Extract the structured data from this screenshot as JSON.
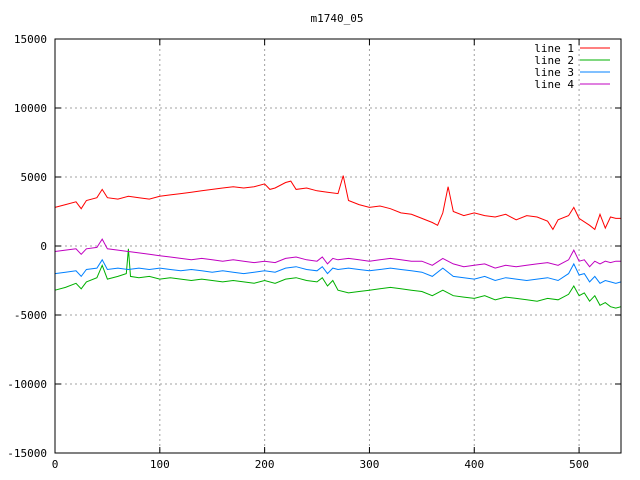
{
  "chart_data": {
    "type": "line",
    "title": "m1740_05",
    "xlim": [
      0,
      540
    ],
    "ylim": [
      -15000,
      15000
    ],
    "xticks": [
      0,
      100,
      200,
      300,
      400,
      500
    ],
    "yticks": [
      -15000,
      -10000,
      -5000,
      0,
      5000,
      10000,
      15000
    ],
    "grid": true,
    "legend_position": "top-right",
    "series": [
      {
        "name": "line 1",
        "color": "#ff0000",
        "points": [
          [
            0,
            2800
          ],
          [
            10,
            3000
          ],
          [
            20,
            3200
          ],
          [
            25,
            2700
          ],
          [
            30,
            3300
          ],
          [
            40,
            3500
          ],
          [
            45,
            4100
          ],
          [
            50,
            3500
          ],
          [
            60,
            3400
          ],
          [
            70,
            3600
          ],
          [
            80,
            3500
          ],
          [
            90,
            3400
          ],
          [
            100,
            3600
          ],
          [
            110,
            3700
          ],
          [
            120,
            3800
          ],
          [
            130,
            3900
          ],
          [
            140,
            4000
          ],
          [
            150,
            4100
          ],
          [
            160,
            4200
          ],
          [
            170,
            4300
          ],
          [
            180,
            4200
          ],
          [
            190,
            4300
          ],
          [
            200,
            4500
          ],
          [
            205,
            4100
          ],
          [
            210,
            4200
          ],
          [
            220,
            4600
          ],
          [
            225,
            4700
          ],
          [
            230,
            4100
          ],
          [
            240,
            4200
          ],
          [
            250,
            4000
          ],
          [
            260,
            3900
          ],
          [
            270,
            3800
          ],
          [
            275,
            5100
          ],
          [
            280,
            3300
          ],
          [
            290,
            3000
          ],
          [
            300,
            2800
          ],
          [
            310,
            2900
          ],
          [
            320,
            2700
          ],
          [
            330,
            2400
          ],
          [
            340,
            2300
          ],
          [
            350,
            2000
          ],
          [
            360,
            1700
          ],
          [
            365,
            1500
          ],
          [
            370,
            2400
          ],
          [
            375,
            4300
          ],
          [
            380,
            2500
          ],
          [
            390,
            2200
          ],
          [
            400,
            2400
          ],
          [
            410,
            2200
          ],
          [
            420,
            2100
          ],
          [
            430,
            2300
          ],
          [
            440,
            1900
          ],
          [
            450,
            2200
          ],
          [
            460,
            2100
          ],
          [
            470,
            1800
          ],
          [
            475,
            1200
          ],
          [
            480,
            1900
          ],
          [
            490,
            2200
          ],
          [
            495,
            2800
          ],
          [
            500,
            2000
          ],
          [
            510,
            1500
          ],
          [
            515,
            1200
          ],
          [
            520,
            2300
          ],
          [
            525,
            1300
          ],
          [
            530,
            2100
          ],
          [
            535,
            2000
          ],
          [
            540,
            2000
          ]
        ]
      },
      {
        "name": "line 2",
        "color": "#00b000",
        "points": [
          [
            0,
            -3200
          ],
          [
            10,
            -3000
          ],
          [
            20,
            -2700
          ],
          [
            25,
            -3100
          ],
          [
            30,
            -2600
          ],
          [
            40,
            -2300
          ],
          [
            45,
            -1400
          ],
          [
            50,
            -2400
          ],
          [
            60,
            -2200
          ],
          [
            68,
            -2000
          ],
          [
            70,
            -200
          ],
          [
            72,
            -2200
          ],
          [
            80,
            -2300
          ],
          [
            90,
            -2200
          ],
          [
            100,
            -2400
          ],
          [
            110,
            -2300
          ],
          [
            120,
            -2400
          ],
          [
            130,
            -2500
          ],
          [
            140,
            -2400
          ],
          [
            150,
            -2500
          ],
          [
            160,
            -2600
          ],
          [
            170,
            -2500
          ],
          [
            180,
            -2600
          ],
          [
            190,
            -2700
          ],
          [
            200,
            -2500
          ],
          [
            210,
            -2700
          ],
          [
            220,
            -2400
          ],
          [
            230,
            -2300
          ],
          [
            240,
            -2500
          ],
          [
            250,
            -2600
          ],
          [
            255,
            -2300
          ],
          [
            260,
            -2900
          ],
          [
            265,
            -2500
          ],
          [
            270,
            -3200
          ],
          [
            280,
            -3400
          ],
          [
            290,
            -3300
          ],
          [
            300,
            -3200
          ],
          [
            310,
            -3100
          ],
          [
            320,
            -3000
          ],
          [
            330,
            -3100
          ],
          [
            340,
            -3200
          ],
          [
            350,
            -3300
          ],
          [
            360,
            -3600
          ],
          [
            370,
            -3200
          ],
          [
            380,
            -3600
          ],
          [
            390,
            -3700
          ],
          [
            400,
            -3800
          ],
          [
            410,
            -3600
          ],
          [
            420,
            -3900
          ],
          [
            430,
            -3700
          ],
          [
            440,
            -3800
          ],
          [
            450,
            -3900
          ],
          [
            460,
            -4000
          ],
          [
            470,
            -3800
          ],
          [
            480,
            -3900
          ],
          [
            490,
            -3500
          ],
          [
            495,
            -2900
          ],
          [
            500,
            -3600
          ],
          [
            505,
            -3400
          ],
          [
            510,
            -4000
          ],
          [
            515,
            -3600
          ],
          [
            520,
            -4300
          ],
          [
            525,
            -4100
          ],
          [
            530,
            -4400
          ],
          [
            535,
            -4500
          ],
          [
            540,
            -4400
          ]
        ]
      },
      {
        "name": "line 3",
        "color": "#0080ff",
        "points": [
          [
            0,
            -2000
          ],
          [
            10,
            -1900
          ],
          [
            20,
            -1800
          ],
          [
            25,
            -2200
          ],
          [
            30,
            -1700
          ],
          [
            40,
            -1600
          ],
          [
            45,
            -1000
          ],
          [
            50,
            -1700
          ],
          [
            60,
            -1600
          ],
          [
            70,
            -1700
          ],
          [
            80,
            -1600
          ],
          [
            90,
            -1700
          ],
          [
            100,
            -1600
          ],
          [
            110,
            -1700
          ],
          [
            120,
            -1800
          ],
          [
            130,
            -1700
          ],
          [
            140,
            -1800
          ],
          [
            150,
            -1900
          ],
          [
            160,
            -1800
          ],
          [
            170,
            -1900
          ],
          [
            180,
            -2000
          ],
          [
            190,
            -1900
          ],
          [
            200,
            -1800
          ],
          [
            210,
            -1900
          ],
          [
            220,
            -1600
          ],
          [
            230,
            -1500
          ],
          [
            240,
            -1700
          ],
          [
            250,
            -1800
          ],
          [
            255,
            -1500
          ],
          [
            260,
            -2000
          ],
          [
            265,
            -1600
          ],
          [
            270,
            -1700
          ],
          [
            280,
            -1600
          ],
          [
            290,
            -1700
          ],
          [
            300,
            -1800
          ],
          [
            310,
            -1700
          ],
          [
            320,
            -1600
          ],
          [
            330,
            -1700
          ],
          [
            340,
            -1800
          ],
          [
            350,
            -1900
          ],
          [
            360,
            -2200
          ],
          [
            370,
            -1600
          ],
          [
            380,
            -2200
          ],
          [
            390,
            -2300
          ],
          [
            400,
            -2400
          ],
          [
            410,
            -2200
          ],
          [
            420,
            -2500
          ],
          [
            430,
            -2300
          ],
          [
            440,
            -2400
          ],
          [
            450,
            -2500
          ],
          [
            460,
            -2400
          ],
          [
            470,
            -2300
          ],
          [
            480,
            -2500
          ],
          [
            490,
            -2000
          ],
          [
            495,
            -1300
          ],
          [
            500,
            -2100
          ],
          [
            505,
            -2000
          ],
          [
            510,
            -2600
          ],
          [
            515,
            -2200
          ],
          [
            520,
            -2700
          ],
          [
            525,
            -2500
          ],
          [
            530,
            -2600
          ],
          [
            535,
            -2700
          ],
          [
            540,
            -2600
          ]
        ]
      },
      {
        "name": "line 4",
        "color": "#c000c0",
        "points": [
          [
            0,
            -400
          ],
          [
            10,
            -300
          ],
          [
            20,
            -200
          ],
          [
            25,
            -600
          ],
          [
            30,
            -200
          ],
          [
            40,
            -100
          ],
          [
            45,
            500
          ],
          [
            50,
            -200
          ],
          [
            60,
            -300
          ],
          [
            70,
            -400
          ],
          [
            80,
            -500
          ],
          [
            90,
            -600
          ],
          [
            100,
            -700
          ],
          [
            110,
            -800
          ],
          [
            120,
            -900
          ],
          [
            130,
            -1000
          ],
          [
            140,
            -900
          ],
          [
            150,
            -1000
          ],
          [
            160,
            -1100
          ],
          [
            170,
            -1000
          ],
          [
            180,
            -1100
          ],
          [
            190,
            -1200
          ],
          [
            200,
            -1100
          ],
          [
            210,
            -1200
          ],
          [
            220,
            -900
          ],
          [
            230,
            -800
          ],
          [
            240,
            -1000
          ],
          [
            250,
            -1100
          ],
          [
            255,
            -800
          ],
          [
            260,
            -1300
          ],
          [
            265,
            -900
          ],
          [
            270,
            -1000
          ],
          [
            280,
            -900
          ],
          [
            290,
            -1000
          ],
          [
            300,
            -1100
          ],
          [
            310,
            -1000
          ],
          [
            320,
            -900
          ],
          [
            330,
            -1000
          ],
          [
            340,
            -1100
          ],
          [
            350,
            -1100
          ],
          [
            360,
            -1400
          ],
          [
            370,
            -900
          ],
          [
            380,
            -1300
          ],
          [
            390,
            -1500
          ],
          [
            400,
            -1400
          ],
          [
            410,
            -1300
          ],
          [
            420,
            -1600
          ],
          [
            430,
            -1400
          ],
          [
            440,
            -1500
          ],
          [
            450,
            -1400
          ],
          [
            460,
            -1300
          ],
          [
            470,
            -1200
          ],
          [
            480,
            -1400
          ],
          [
            490,
            -1000
          ],
          [
            495,
            -300
          ],
          [
            500,
            -1100
          ],
          [
            505,
            -1000
          ],
          [
            510,
            -1500
          ],
          [
            515,
            -1100
          ],
          [
            520,
            -1300
          ],
          [
            525,
            -1100
          ],
          [
            530,
            -1200
          ],
          [
            535,
            -1100
          ],
          [
            540,
            -1100
          ]
        ]
      }
    ]
  }
}
